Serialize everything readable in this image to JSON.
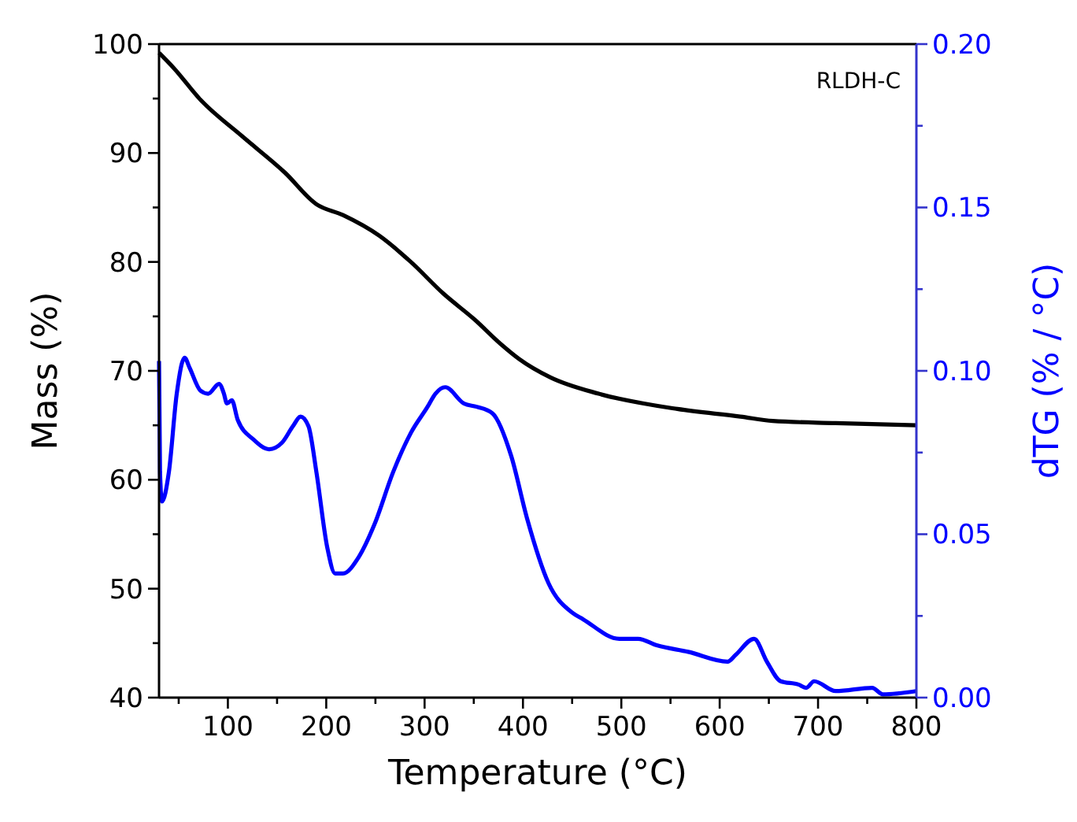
{
  "chart_data": {
    "type": "line",
    "xlabel": "Temperature (°C)",
    "ylabel": "Mass (%)",
    "y2label": "dTG (% / °C)",
    "xlim": [
      30,
      800
    ],
    "xticks": [
      {
        "value": 50,
        "label": null
      },
      100,
      {
        "value": 150,
        "label": null
      },
      200,
      {
        "value": 250,
        "label": null
      },
      300,
      {
        "value": 350,
        "label": null
      },
      400,
      {
        "value": 450,
        "label": null
      },
      500,
      {
        "value": 550,
        "label": null
      },
      600,
      {
        "value": 650,
        "label": null
      },
      700,
      {
        "value": 750,
        "label": null
      },
      800
    ],
    "ylim": [
      40,
      100
    ],
    "yticks": [
      40,
      {
        "value": 45,
        "label": null
      },
      50,
      {
        "value": 55,
        "label": null
      },
      60,
      {
        "value": 65,
        "label": null
      },
      70,
      {
        "value": 75,
        "label": null
      },
      80,
      {
        "value": 85,
        "label": null
      },
      90,
      {
        "value": 95,
        "label": null
      },
      100
    ],
    "y2lim": [
      0,
      0.2
    ],
    "y2ticks": [
      {
        "value": 0,
        "label": "0.00"
      },
      {
        "value": 0.025,
        "label": null
      },
      {
        "value": 0.05,
        "label": "0.05"
      },
      {
        "value": 0.075,
        "label": null
      },
      {
        "value": 0.1,
        "label": "0.10"
      },
      {
        "value": 0.125,
        "label": null
      },
      {
        "value": 0.15,
        "label": "0.15"
      },
      {
        "value": 0.175,
        "label": null
      },
      {
        "value": 0.2,
        "label": "0.20"
      }
    ],
    "line_style": "solid",
    "annotations": [
      "RLDH-C"
    ],
    "series": [
      {
        "color": "#000000",
        "x": [
          30,
          45,
          72,
          115,
          158,
          190,
          217,
          254,
          286,
          319,
          351,
          377,
          396,
          428,
          477,
          557,
          621,
          654,
          718,
          800
        ],
        "values": [
          99.2,
          97.8,
          94.9,
          91.5,
          88.2,
          85.3,
          84.3,
          82.4,
          80.0,
          77.1,
          74.7,
          72.5,
          71.1,
          69.4,
          67.9,
          66.5,
          65.8,
          65.4,
          65.2,
          65.0
        ]
      },
      {
        "color": "#0000ff",
        "axis": "y2",
        "x": [
          30,
          31,
          33,
          40,
          48,
          56,
          61,
          72,
          80,
          91,
          96,
          99,
          104,
          110,
          126,
          142,
          155,
          166,
          174,
          182,
          190,
          201,
          209,
          217,
          233,
          249,
          268,
          286,
          303,
          311,
          321,
          340,
          353,
          369,
          388,
          404,
          426,
          450,
          461,
          498,
          517,
          536,
          568,
          608,
          616,
          635,
          648,
          662,
          680,
          688,
          696,
          718,
          755,
          766,
          800
        ],
        "values": [
          0.103,
          0.069,
          0.06,
          0.069,
          0.093,
          0.104,
          0.101,
          0.094,
          0.093,
          0.096,
          0.093,
          0.09,
          0.091,
          0.085,
          0.079,
          0.076,
          0.078,
          0.083,
          0.086,
          0.083,
          0.069,
          0.046,
          0.038,
          0.038,
          0.043,
          0.053,
          0.069,
          0.081,
          0.089,
          0.093,
          0.095,
          0.09,
          0.089,
          0.087,
          0.074,
          0.055,
          0.035,
          0.026,
          0.024,
          0.018,
          0.018,
          0.016,
          0.014,
          0.011,
          0.013,
          0.018,
          0.011,
          0.005,
          0.004,
          0.003,
          0.005,
          0.002,
          0.003,
          0.001,
          0.002
        ]
      }
    ]
  }
}
